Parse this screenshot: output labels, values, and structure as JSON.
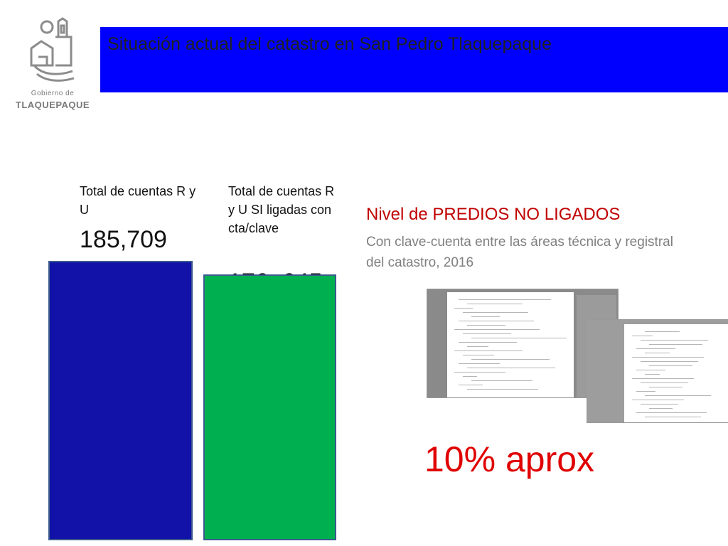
{
  "logo": {
    "line1": "Gobierno de",
    "line2": "TLAQUEPAQUE",
    "icon": "tlaquepaque-church-logo-icon"
  },
  "header": {
    "title": "Situación actual del catastro en San Pedro Tlaquepaque",
    "band_color": "#0000ff"
  },
  "metrics": [
    {
      "label": "Total de cuentas R y U",
      "value": "185,709",
      "color": "#1212a8",
      "amount": 185709
    },
    {
      "label": "Total de cuentas R y U SI ligadas con cta/clave",
      "value": "176, 645",
      "color": "#00b050",
      "amount": 176645
    }
  ],
  "nivel": {
    "title": "Nivel de PREDIOS NO LIGADOS",
    "subtitle": "Con clave-cuenta entre las áreas técnica y registral del catastro, 2016",
    "title_color": "#c00000"
  },
  "percent": {
    "text": "10% aprox",
    "color": "#e00000"
  }
}
